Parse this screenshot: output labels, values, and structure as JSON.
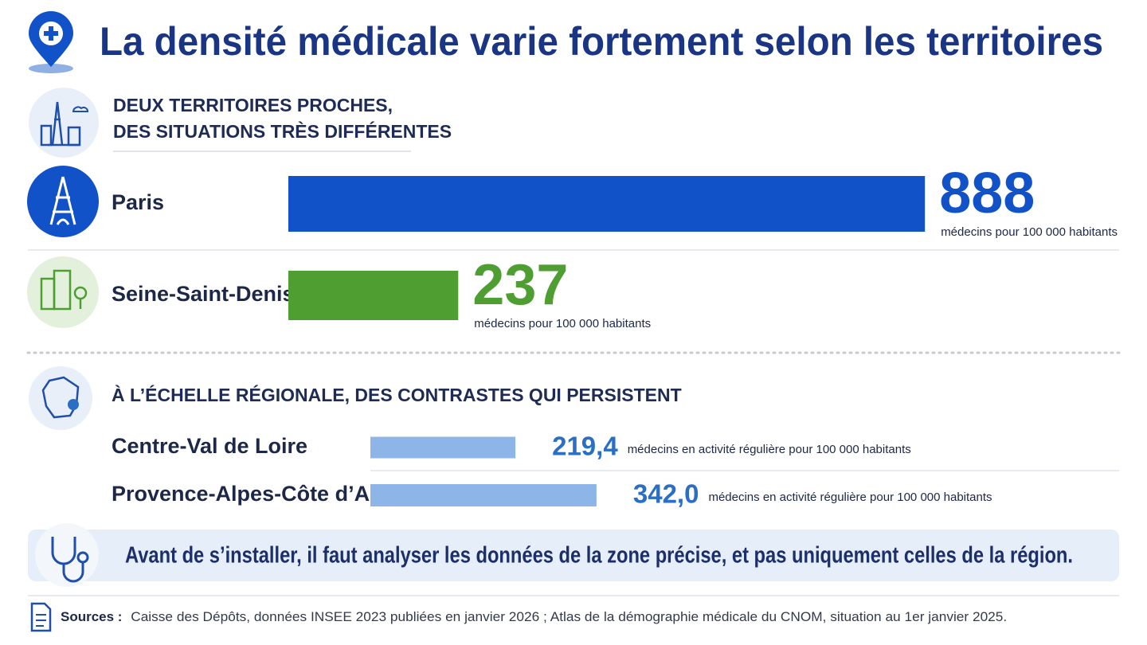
{
  "header": {
    "title": "La densité médicale varie fortement selon les territoires"
  },
  "chart_data": [
    {
      "type": "bar",
      "orientation": "horizontal",
      "title": [
        "DEUX TERRITOIRES PROCHES,",
        "DES SITUATIONS TRÈS DIFFÉRENTES"
      ],
      "categories": [
        "Paris",
        "Seine-Saint-Denis"
      ],
      "values": [
        888,
        237
      ],
      "colors": [
        "#1152c8",
        "#4f9e32"
      ],
      "unit_label": "médecins pour 100 000 habitants"
    },
    {
      "type": "bar",
      "orientation": "horizontal",
      "title": "À L’ÉCHELLE RÉGIONALE, DES CONTRASTES QUI PERSISTENT",
      "categories": [
        "Centre-Val de Loire",
        "Provence-Alpes-Côte d’Azur"
      ],
      "values": [
        219.4,
        342.0
      ],
      "value_labels": [
        "219,4",
        "342,0"
      ],
      "color": "#8db5e7",
      "value_color": "#2a6fc4",
      "unit_label": "médecins en activité régulière pour 100 000 habitants"
    }
  ],
  "note": "Avant de s’installer, il faut analyser les données de la zone précise, et pas uniquement celles de la région.",
  "sources": {
    "label": "Sources :",
    "text": "Caisse des Dépôts, données INSEE 2023 publiées en janvier 2026 ; Atlas de la démographie médicale du CNOM, situation au 1er janvier 2025."
  }
}
